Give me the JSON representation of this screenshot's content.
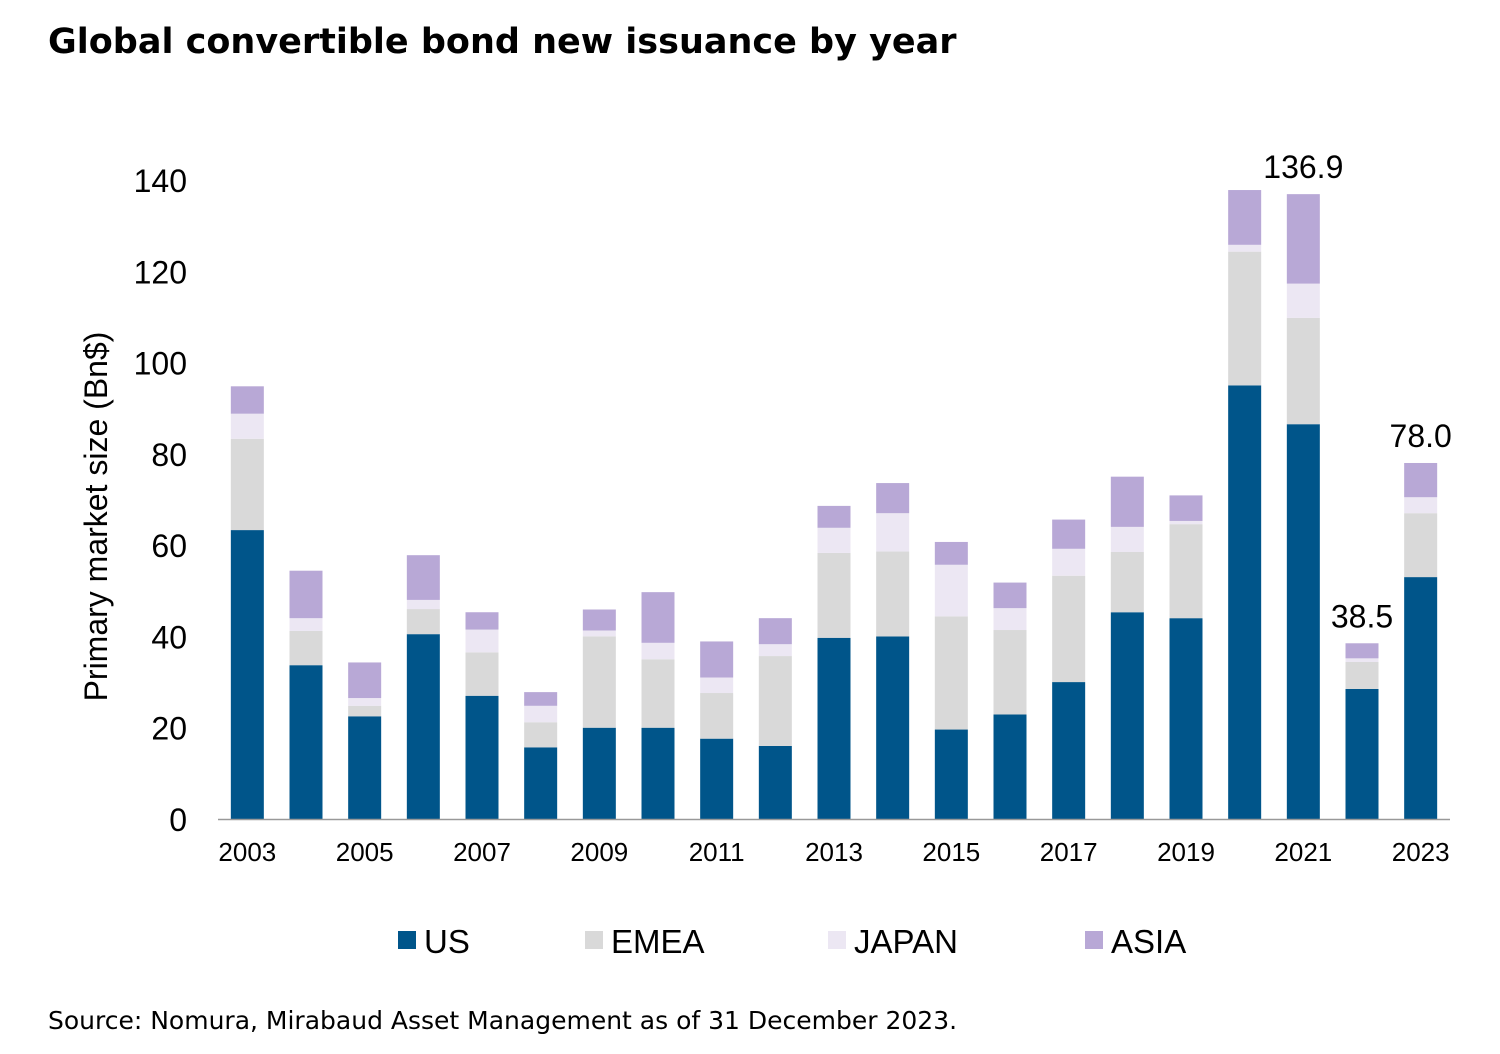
{
  "title": "Global convertible bond new issuance by year",
  "source": "Source: Nomura, Mirabaud Asset Management as of 31 December 2023.",
  "chart_data": {
    "type": "bar",
    "stacked": true,
    "title": "Global convertible bond new issuance by year",
    "xlabel": "",
    "ylabel": "Primary market size (Bn$)",
    "ylim": [
      0,
      140
    ],
    "yticks": [
      0,
      20,
      40,
      60,
      80,
      100,
      120,
      140
    ],
    "categories": [
      "2003",
      "2004",
      "2005",
      "2006",
      "2007",
      "2008",
      "2009",
      "2010",
      "2011",
      "2012",
      "2013",
      "2014",
      "2015",
      "2016",
      "2017",
      "2018",
      "2019",
      "2020",
      "2021",
      "2022",
      "2023"
    ],
    "x_tick_labels": [
      "2003",
      "",
      "2005",
      "",
      "2007",
      "",
      "2009",
      "",
      "2011",
      "",
      "2013",
      "",
      "2015",
      "",
      "2017",
      "",
      "2019",
      "",
      "2021",
      "",
      "2023"
    ],
    "series": [
      {
        "name": "US",
        "color": "#00558a",
        "values": [
          63.3,
          33.7,
          22.5,
          40.5,
          27.0,
          15.7,
          20.0,
          20.0,
          17.6,
          16.0,
          39.7,
          40.0,
          19.6,
          22.9,
          30.0,
          45.3,
          44.0,
          95.0,
          86.5,
          28.5,
          53.0
        ]
      },
      {
        "name": "EMEA",
        "color": "#d9d9d9",
        "values": [
          20.0,
          7.5,
          2.3,
          5.5,
          9.5,
          5.5,
          20.0,
          15.0,
          10.0,
          19.7,
          18.6,
          18.6,
          24.8,
          18.5,
          23.3,
          13.2,
          20.6,
          29.3,
          23.3,
          5.9,
          14.0
        ]
      },
      {
        "name": "JAPAN",
        "color": "#ece7f3",
        "values": [
          5.5,
          2.8,
          1.7,
          2.0,
          5.0,
          3.6,
          1.3,
          3.6,
          3.4,
          2.6,
          5.5,
          8.4,
          11.3,
          4.8,
          5.9,
          5.5,
          0.7,
          1.5,
          7.5,
          0.8,
          3.5
        ]
      },
      {
        "name": "ASIA",
        "color": "#b8a8d6",
        "values": [
          6.0,
          10.4,
          7.8,
          9.8,
          3.8,
          3.0,
          4.6,
          11.1,
          7.9,
          5.7,
          4.8,
          6.6,
          5.0,
          5.6,
          6.4,
          11.0,
          5.6,
          12.0,
          19.6,
          3.3,
          7.5
        ]
      }
    ],
    "data_labels": [
      {
        "category": "2021",
        "text": "136.9"
      },
      {
        "category": "2022",
        "text": "38.5"
      },
      {
        "category": "2023",
        "text": "78.0"
      }
    ],
    "grid": false,
    "legend_position": "bottom"
  }
}
